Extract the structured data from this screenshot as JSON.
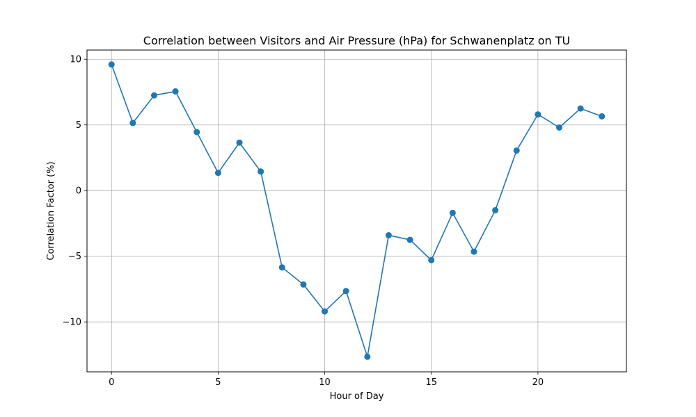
{
  "chart_data": {
    "type": "line",
    "title": "Correlation between Visitors and Air Pressure (hPa) for Schwanenplatz on TU",
    "xlabel": "Hour of Day",
    "ylabel": "Correlation Factor (%)",
    "xlim": [
      -1.15,
      24.15
    ],
    "ylim": [
      -13.8,
      10.7
    ],
    "x_ticks": [
      0,
      5,
      10,
      15,
      20
    ],
    "y_ticks": [
      -10,
      -5,
      0,
      5,
      10
    ],
    "y_tick_labels": [
      "−10",
      "−5",
      "0",
      "5",
      "10"
    ],
    "grid": true,
    "series": [
      {
        "color": "#1f77b4",
        "marker": "circle",
        "x": [
          0,
          1,
          2,
          3,
          4,
          5,
          6,
          7,
          8,
          9,
          10,
          11,
          12,
          13,
          14,
          15,
          16,
          17,
          18,
          19,
          20,
          21,
          22,
          23
        ],
        "y": [
          9.6,
          5.15,
          7.25,
          7.55,
          4.45,
          1.35,
          3.65,
          1.45,
          -5.85,
          -7.15,
          -9.2,
          -7.65,
          -12.65,
          -3.4,
          -3.75,
          -5.3,
          -1.7,
          -4.65,
          -1.5,
          3.05,
          5.8,
          4.8,
          6.25,
          5.65
        ]
      }
    ]
  }
}
